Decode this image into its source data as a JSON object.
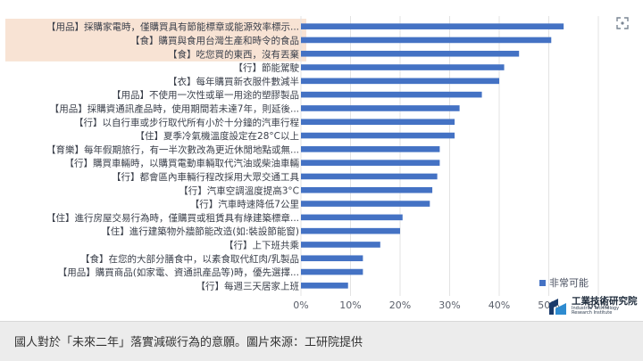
{
  "ui": {
    "expand_icon": "expand-icon"
  },
  "chart_data": {
    "type": "bar",
    "orientation": "horizontal",
    "categories": [
      "【用品】採購家電時，僅購買具有節能標章或能源效率標示...",
      "【食】購買與食用台灣生產和時令的食品",
      "【食】吃您買的東西，沒有丟棄",
      "【行】節能駕駛",
      "【衣】每年購買新衣服件數減半",
      "【用品】不使用一次性或單一用途的塑膠製品",
      "【用品】採購資通訊產品時，使用期間若未達7年，則延後...",
      "【行】以自行車或步行取代所有小於十分鐘的汽車行程",
      "【住】夏季冷氣機溫度設定在28°C以上",
      "【育樂】每年假期旅行，有一半次數改為更近休閒地點或無...",
      "【行】購買車輛時，以購買電動車輛取代汽油或柴油車輛",
      "【行】都會區內車輛行程改採用大眾交通工具",
      "【行】汽車空調溫度提高3°C",
      "【行】汽車時速降低7公里",
      "【住】進行房屋交易行為時，僅購買或租賃具有綠建築標章...",
      "【住】進行建築物外牆節能改造(如:裝設節能窗)",
      "【行】上下班共乘",
      "【食】在您的大部分膳食中，以素食取代紅肉/乳製品",
      "【用品】購買商品(如家電、資通訊產品等)時，優先選擇...",
      "【行】每週三天居家上班"
    ],
    "series": [
      {
        "name": "非常可能",
        "color": "#4472c4",
        "values": [
          53,
          50.5,
          44,
          41,
          40,
          36.5,
          32,
          31,
          31,
          28,
          28,
          27.5,
          26.5,
          26,
          20.5,
          20,
          16,
          12.5,
          12.5,
          9.5
        ]
      }
    ],
    "highlighted_categories": [
      0,
      1,
      2
    ],
    "highlight_color": "#f8e3d4",
    "xlim": [
      0,
      60
    ],
    "xticks": [
      "0%",
      "10%",
      "20%",
      "30%",
      "40%",
      "50%",
      "60%"
    ],
    "grid": true,
    "legend_position": "bottom-right",
    "title": "",
    "xlabel": "",
    "ylabel": ""
  },
  "logo": {
    "name_zh": "工業技術研究院",
    "name_en_line1": "Industrial Technology",
    "name_en_line2": "Research Institute",
    "colors": [
      "#1a3a6a",
      "#2e8bd0"
    ]
  },
  "caption": {
    "text": "國人對於「未來二年」落實減碳行為的意願。圖片來源：工研院提供"
  }
}
